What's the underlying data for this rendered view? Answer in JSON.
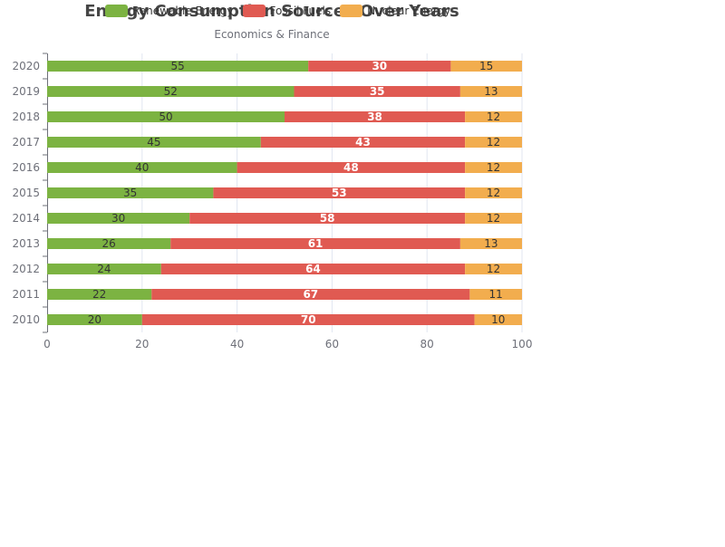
{
  "chart_data": {
    "type": "bar",
    "orientation": "horizontal",
    "stacked": true,
    "title": "Energy Consumption Sources Over Years",
    "subtitle": "Economics & Finance",
    "categories": [
      "2010",
      "2011",
      "2012",
      "2013",
      "2014",
      "2015",
      "2016",
      "2017",
      "2018",
      "2019",
      "2020"
    ],
    "series": [
      {
        "name": "Renewable Energy",
        "color": "#7cb342",
        "values": [
          20,
          22,
          24,
          26,
          30,
          35,
          40,
          45,
          50,
          52,
          55
        ]
      },
      {
        "name": "Fossil Fuels",
        "color": "#e05a52",
        "values": [
          70,
          67,
          64,
          61,
          58,
          53,
          48,
          43,
          38,
          35,
          30
        ]
      },
      {
        "name": "Nuclear Energy",
        "color": "#f2ad4e",
        "values": [
          10,
          11,
          12,
          13,
          12,
          12,
          12,
          12,
          12,
          13,
          15
        ]
      }
    ],
    "xlim": [
      0,
      100
    ],
    "x_ticks": [
      0,
      20,
      40,
      60,
      80,
      100
    ],
    "grid": true,
    "legend_position": "top"
  }
}
